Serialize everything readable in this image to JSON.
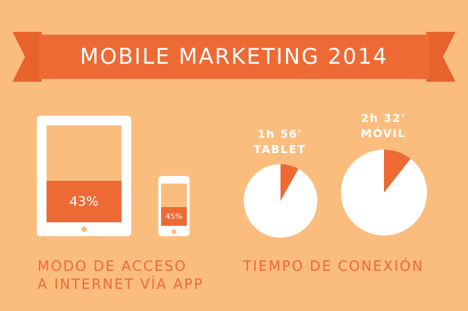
{
  "header": {
    "title": "MOBILE MARKETING 2014"
  },
  "access": {
    "tablet_percent_label": "43%",
    "tablet_fraction": 0.43,
    "mobile_percent_label": "45%",
    "mobile_fraction": 0.45,
    "caption_line1": "MODO DE ACCESO",
    "caption_line2": "A INTERNET VÍA APP"
  },
  "connection": {
    "tablet": {
      "time": "1h 56'",
      "device": "TABLET",
      "fraction": 0.081
    },
    "mobile": {
      "time": "2h 32'",
      "device": "MÓVIL",
      "fraction": 0.106
    },
    "caption": "TIEMPO DE CONEXIÓN"
  },
  "colors": {
    "background": "#FBBD7E",
    "accent": "#EE6A35",
    "white": "#FFFFFF"
  }
}
